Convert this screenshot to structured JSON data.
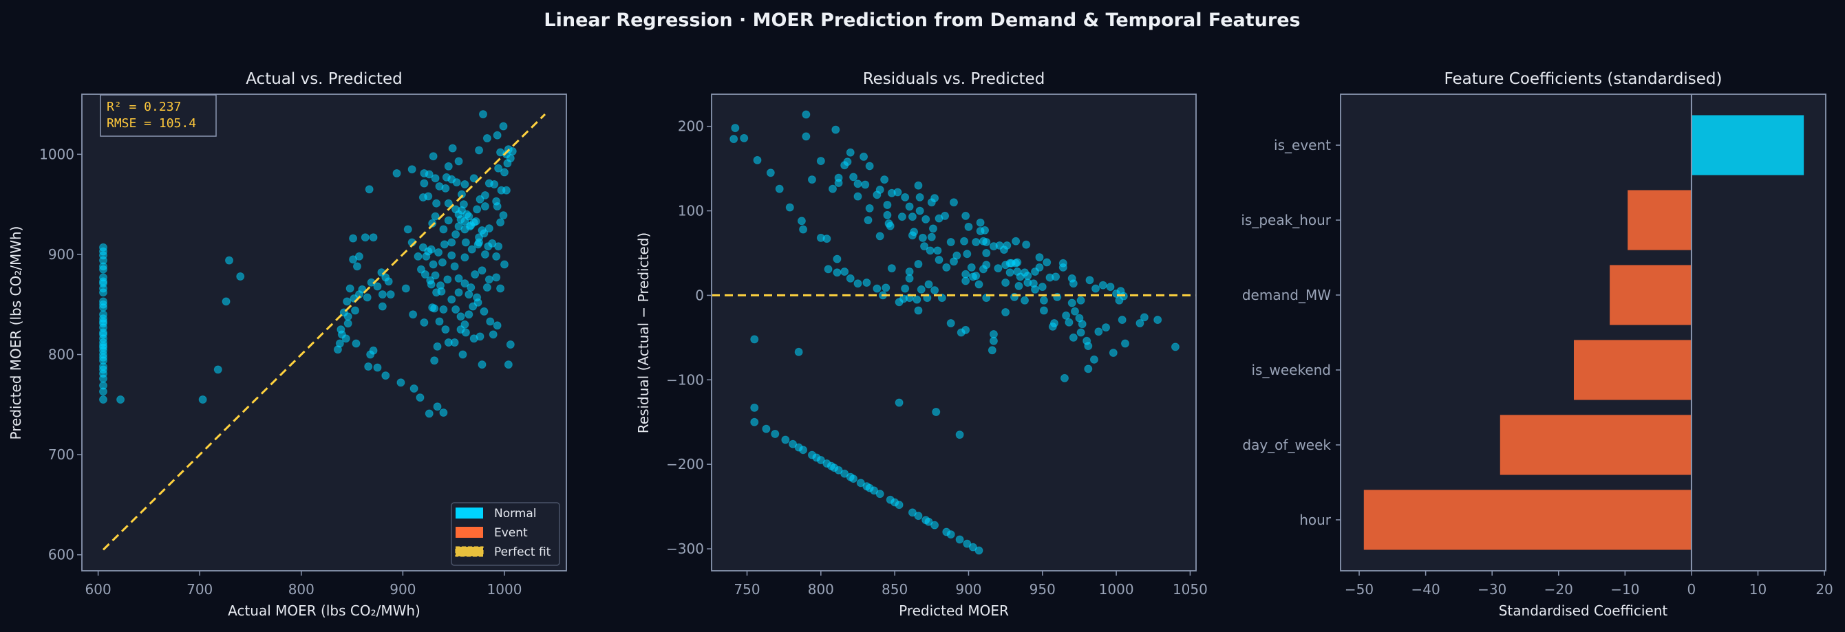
{
  "title": "Linear Regression  ·  MOER Prediction from Demand & Temporal Features",
  "colors": {
    "background": "#0a0e1a",
    "axes_face": "#1a1f2e",
    "axes_edge": "#8a96b0",
    "tick_text": "#9aa4b8",
    "label_text": "#e6e9f0",
    "point": "#00d4ff",
    "reference": "#ffd23f",
    "annotation": "#ffc93c"
  },
  "chart_data": [
    {
      "type": "scatter",
      "title": "Actual vs. Predicted",
      "xlabel": "Actual MOER (lbs CO₂/MWh)",
      "ylabel": "Predicted MOER (lbs CO₂/MWh)",
      "xlim": [
        584,
        1061
      ],
      "ylim": [
        584,
        1060
      ],
      "xticks": [
        600,
        700,
        800,
        900,
        1000
      ],
      "yticks": [
        600,
        700,
        800,
        900,
        1000
      ],
      "grid": false,
      "annotation": [
        "R² = 0.237",
        "RMSE = 105.4"
      ],
      "legend": {
        "position": "lower-right",
        "entries": [
          {
            "label": "Normal",
            "color": "#00d4ff",
            "style": "patch"
          },
          {
            "label": "Event",
            "color": "#ff6b35",
            "style": "patch"
          },
          {
            "label": "Perfect fit",
            "color": "#ffd23f",
            "style": "dashed"
          }
        ]
      },
      "reference_line": {
        "from": [
          605,
          605
        ],
        "to": [
          1040,
          1040
        ]
      },
      "series": [
        {
          "name": "Normal",
          "color": "#00d4ff",
          "points_actual_predicted": [
            [
              605,
              755
            ],
            [
              605,
              763
            ],
            [
              605,
              769
            ],
            [
              605,
              776
            ],
            [
              605,
              781
            ],
            [
              605,
              785
            ],
            [
              605,
              788
            ],
            [
              605,
              794
            ],
            [
              605,
              797
            ],
            [
              605,
              800
            ],
            [
              605,
              804
            ],
            [
              605,
              807
            ],
            [
              605,
              809
            ],
            [
              605,
              812
            ],
            [
              605,
              816
            ],
            [
              605,
              820
            ],
            [
              605,
              822
            ],
            [
              605,
              827
            ],
            [
              605,
              831
            ],
            [
              605,
              833
            ],
            [
              605,
              836
            ],
            [
              605,
              840
            ],
            [
              605,
              847
            ],
            [
              605,
              850
            ],
            [
              605,
              853
            ],
            [
              605,
              862
            ],
            [
              605,
              866
            ],
            [
              605,
              871
            ],
            [
              605,
              873
            ],
            [
              605,
              877
            ],
            [
              605,
              885
            ],
            [
              605,
              888
            ],
            [
              605,
              894
            ],
            [
              605,
              899
            ],
            [
              605,
              903
            ],
            [
              605,
              907
            ],
            [
              622,
              755
            ],
            [
              703,
              755
            ],
            [
              718,
              785
            ],
            [
              726,
              853
            ],
            [
              729,
              894
            ],
            [
              740,
              878
            ],
            [
              940,
              742
            ],
            [
              926,
              741
            ],
            [
              934,
              748
            ],
            [
              917,
              757
            ],
            [
              911,
              766
            ],
            [
              898,
              772
            ],
            [
              883,
              779
            ],
            [
              875,
              787
            ],
            [
              866,
              788
            ],
            [
              868,
              800
            ],
            [
              871,
              804
            ],
            [
              854,
              811
            ],
            [
              836,
              805
            ],
            [
              838,
              811
            ],
            [
              844,
              816
            ],
            [
              840,
              820
            ],
            [
              839,
              825
            ],
            [
              846,
              831
            ],
            [
              853,
              844
            ],
            [
              842,
              842
            ],
            [
              846,
              838
            ],
            [
              845,
              853
            ],
            [
              848,
              866
            ],
            [
              852,
              856
            ],
            [
              857,
              860
            ],
            [
              860,
              865
            ],
            [
              865,
              857
            ],
            [
              869,
              872
            ],
            [
              875,
              868
            ],
            [
              880,
              860
            ],
            [
              888,
              860
            ],
            [
              903,
              866
            ],
            [
              880,
              848
            ],
            [
              886,
              873
            ],
            [
              879,
              882
            ],
            [
              883,
              877
            ],
            [
              921,
              832
            ],
            [
              910,
              840
            ],
            [
              929,
              847
            ],
            [
              979,
              1040
            ],
            [
              999,
              1028
            ],
            [
              993,
              1019
            ],
            [
              983,
              1016
            ],
            [
              975,
              1004
            ],
            [
              949,
              1006
            ],
            [
              1004,
              1005
            ],
            [
              1008,
              1003
            ],
            [
              996,
              1002
            ],
            [
              1002,
              1000
            ],
            [
              1006,
              996
            ],
            [
              955,
              993
            ],
            [
              930,
              998
            ],
            [
              945,
              988
            ],
            [
              1003,
              991
            ],
            [
              1000,
              982
            ],
            [
              994,
              986
            ],
            [
              909,
              985
            ],
            [
              894,
              981
            ],
            [
              921,
              981
            ],
            [
              926,
              980
            ],
            [
              932,
              976
            ],
            [
              943,
              977
            ],
            [
              948,
              975
            ],
            [
              970,
              976
            ],
            [
              985,
              971
            ],
            [
              990,
              970
            ],
            [
              961,
              970
            ],
            [
              953,
              972
            ],
            [
              936,
              968
            ],
            [
              942,
              966
            ],
            [
              921,
              971
            ],
            [
              867,
              965
            ],
            [
              997,
              964
            ],
            [
              1002,
              964
            ],
            [
              981,
              959
            ],
            [
              958,
              960
            ],
            [
              920,
              957
            ],
            [
              925,
              958
            ],
            [
              933,
              951
            ],
            [
              945,
              951
            ],
            [
              960,
              950
            ],
            [
              976,
              955
            ],
            [
              992,
              953
            ],
            [
              973,
              945
            ],
            [
              981,
              948
            ],
            [
              993,
              948
            ],
            [
              955,
              940
            ],
            [
              965,
              938
            ],
            [
              957,
              935
            ],
            [
              999,
              939
            ],
            [
              996,
              932
            ],
            [
              945,
              934
            ],
            [
              955,
              928
            ],
            [
              961,
              925
            ],
            [
              967,
              929
            ],
            [
              972,
              933
            ],
            [
              985,
              926
            ],
            [
              978,
              924
            ],
            [
              932,
              938
            ],
            [
              940,
              925
            ],
            [
              952,
              920
            ],
            [
              975,
              917
            ],
            [
              948,
              912
            ],
            [
              929,
              931
            ],
            [
              920,
              907
            ],
            [
              941,
              910
            ],
            [
              935,
              902
            ],
            [
              925,
              903
            ],
            [
              928,
              905
            ],
            [
              962,
              912
            ],
            [
              974,
              910
            ],
            [
              984,
              908
            ],
            [
              994,
              908
            ],
            [
              1000,
              890
            ],
            [
              992,
              898
            ],
            [
              981,
              900
            ],
            [
              968,
              905
            ],
            [
              961,
              897
            ],
            [
              948,
              899
            ],
            [
              939,
              892
            ],
            [
              930,
              890
            ],
            [
              923,
              898
            ],
            [
              915,
              898
            ],
            [
              905,
              925
            ],
            [
              909,
              912
            ],
            [
              863,
              917
            ],
            [
              871,
              917
            ],
            [
              851,
              916
            ],
            [
              857,
              898
            ],
            [
              855,
              888
            ],
            [
              851,
              895
            ],
            [
              918,
              885
            ],
            [
              922,
              880
            ],
            [
              927,
              874
            ],
            [
              932,
              879
            ],
            [
              937,
              869
            ],
            [
              944,
              875
            ],
            [
              951,
              888
            ],
            [
              955,
              876
            ],
            [
              961,
              871
            ],
            [
              967,
              867
            ],
            [
              971,
              880
            ],
            [
              978,
              884
            ],
            [
              985,
              875
            ],
            [
              992,
              877
            ],
            [
              996,
              866
            ],
            [
              983,
              867
            ],
            [
              973,
              857
            ],
            [
              965,
              860
            ],
            [
              955,
              862
            ],
            [
              948,
              855
            ],
            [
              938,
              863
            ],
            [
              933,
              862
            ],
            [
              928,
              870
            ],
            [
              940,
              845
            ],
            [
              936,
              833
            ],
            [
              931,
              846
            ],
            [
              952,
              845
            ],
            [
              957,
              838
            ],
            [
              961,
              830
            ],
            [
              965,
              840
            ],
            [
              969,
              848
            ],
            [
              974,
              852
            ],
            [
              980,
              843
            ],
            [
              986,
              833
            ],
            [
              993,
              829
            ],
            [
              989,
              820
            ],
            [
              976,
              818
            ],
            [
              970,
              816
            ],
            [
              962,
              822
            ],
            [
              957,
              825
            ],
            [
              951,
              812
            ],
            [
              945,
              812
            ],
            [
              942,
              825
            ],
            [
              934,
              808
            ],
            [
              931,
              794
            ],
            [
              959,
              800
            ],
            [
              978,
              790
            ],
            [
              1004,
              790
            ],
            [
              1006,
              810
            ],
            [
              961,
              933
            ],
            [
              963,
              940
            ],
            [
              966,
              928
            ],
            [
              970,
              932
            ],
            [
              958,
              944
            ],
            [
              952,
              945
            ],
            [
              988,
              911
            ],
            [
              980,
              921
            ],
            [
              975,
              912
            ]
          ]
        }
      ]
    },
    {
      "type": "scatter",
      "title": "Residuals vs. Predicted",
      "xlabel": "Predicted MOER",
      "ylabel": "Residual (Actual − Predicted)",
      "xlim": [
        726,
        1054
      ],
      "ylim": [
        -326,
        238
      ],
      "xticks": [
        750,
        800,
        850,
        900,
        950,
        1000,
        1050
      ],
      "yticks": [
        -300,
        -200,
        -100,
        0,
        100,
        200
      ],
      "grid": false,
      "reference_line": {
        "y": 0,
        "color": "#ffd23f",
        "style": "dashed"
      },
      "series": [
        {
          "color": "#00d4ff",
          "points": "residual = actual − predicted of chart 1 points, plotted against predicted"
        }
      ]
    },
    {
      "type": "bar",
      "orientation": "horizontal",
      "title": "Feature Coefficients (standardised)",
      "xlabel": "Standardised Coefficient",
      "ylabel": "",
      "categories": [
        "hour",
        "day_of_week",
        "is_weekend",
        "demand_MW",
        "is_peak_hour",
        "is_event"
      ],
      "values": [
        -49.3,
        -28.8,
        -17.7,
        -12.3,
        -9.6,
        16.9
      ],
      "positive_color": "#06bbdf",
      "negative_color": "#dd5f35",
      "xlim": [
        -52.8,
        20.2
      ],
      "xticks": [
        -50,
        -40,
        -30,
        -20,
        -10,
        0,
        10,
        20
      ],
      "grid": false
    }
  ]
}
